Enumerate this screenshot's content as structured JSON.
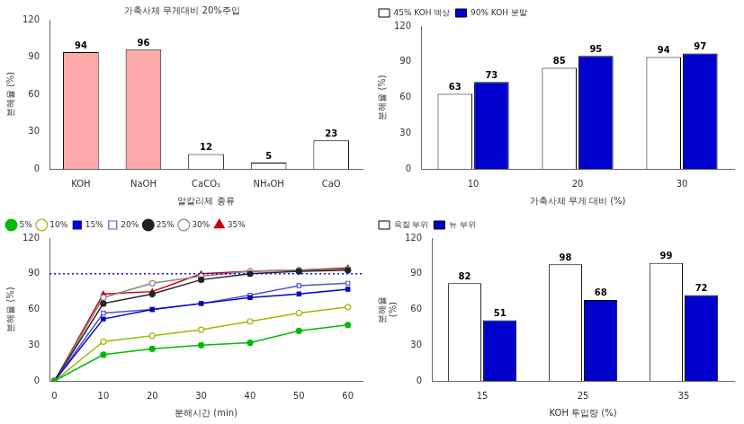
{
  "chart_data": [
    {
      "type": "bar",
      "title": "가축사체 무게대비 20%주입",
      "categories": [
        "KOH",
        "NaOH",
        "CaCO₃",
        "NH₄OH",
        "CaO"
      ],
      "values": [
        94,
        96,
        12,
        5,
        23
      ],
      "colors": [
        "#ffaaaa",
        "#ffaaaa",
        "#ffffff",
        "#ffffff",
        "#ffffff"
      ],
      "xlabel": "알칼리제 종류",
      "ylabel": "분해율 (%)",
      "ylim": [
        0,
        120
      ],
      "yticks": [
        0,
        30,
        60,
        90,
        120
      ],
      "data_labels": true,
      "grid": false
    },
    {
      "type": "bar",
      "categories": [
        10,
        20,
        30
      ],
      "series": [
        {
          "name": "45% KOH 액상",
          "color": "#ffffff",
          "values": [
            63,
            85,
            94
          ]
        },
        {
          "name": "90% KOH 분말",
          "color": "#0000cc",
          "values": [
            73,
            95,
            97
          ]
        }
      ],
      "xlabel": "가축사체 무게 대비 (%)",
      "ylabel": "분해율 (%)",
      "ylim": [
        0,
        120
      ],
      "yticks": [
        0,
        30,
        60,
        90,
        120
      ],
      "data_labels": true,
      "legend": "upper left",
      "grid": false
    },
    {
      "type": "line",
      "x": [
        0,
        10,
        20,
        30,
        40,
        50,
        60
      ],
      "series": [
        {
          "name": "5%",
          "color": "#00bb00",
          "marker": "circle",
          "values": [
            0,
            22,
            27,
            30,
            32,
            42,
            47
          ]
        },
        {
          "name": "10%",
          "color": "#99bb00",
          "marker": "circle-open",
          "values": [
            0,
            33,
            38,
            43,
            50,
            57,
            62
          ]
        },
        {
          "name": "15%",
          "color": "#0000cc",
          "marker": "square",
          "values": [
            0,
            52,
            60,
            65,
            70,
            73,
            77
          ]
        },
        {
          "name": "20%",
          "color": "#5555cc",
          "marker": "square-open",
          "values": [
            0,
            57,
            60,
            65,
            72,
            80,
            82
          ]
        },
        {
          "name": "25%",
          "color": "#222222",
          "marker": "circle",
          "values": [
            0,
            65,
            73,
            85,
            90,
            92,
            93
          ]
        },
        {
          "name": "30%",
          "color": "#888888",
          "marker": "circle-open",
          "values": [
            0,
            70,
            82,
            88,
            92,
            93,
            94
          ]
        },
        {
          "name": "35%",
          "color": "#cc0000",
          "marker": "triangle",
          "values": [
            0,
            73,
            75,
            90,
            92,
            93,
            95
          ]
        }
      ],
      "hline": {
        "y": 90,
        "color": "#0000ff",
        "line_style": "dotted"
      },
      "xlabel": "분해시간 (min)",
      "ylabel": "분해율 (%)",
      "xlim": [
        -1,
        63
      ],
      "xticks": [
        0,
        10,
        20,
        30,
        40,
        50,
        60
      ],
      "ylim": [
        0,
        120
      ],
      "yticks": [
        0,
        30,
        60,
        90,
        120
      ],
      "legend": "upper left",
      "grid": false
    },
    {
      "type": "bar",
      "categories": [
        15,
        25,
        35
      ],
      "series": [
        {
          "name": "육질 부위",
          "color": "#ffffff",
          "values": [
            82,
            98,
            99
          ]
        },
        {
          "name": "뉴 부위",
          "color": "#0000cc",
          "values": [
            51,
            68,
            72
          ]
        }
      ],
      "xlabel": "KOH 투입량 (%)",
      "ylabel": "분해율\n(%)",
      "ylim": [
        0,
        120
      ],
      "yticks": [
        0,
        30,
        60,
        90,
        120
      ],
      "data_labels": true,
      "legend": "upper left",
      "grid": false
    }
  ]
}
